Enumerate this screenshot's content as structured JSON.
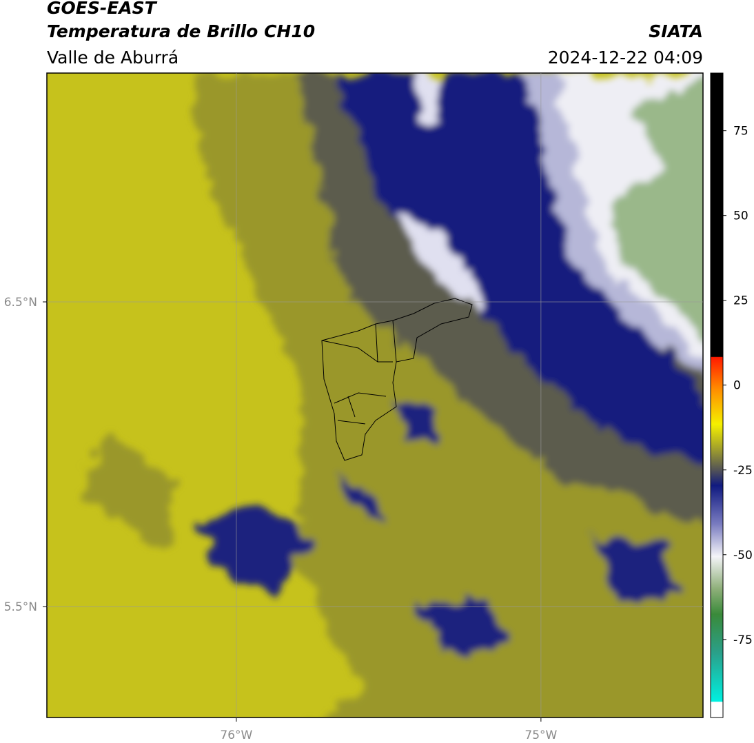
{
  "chart_data": {
    "type": "map",
    "title": "GOES-EAST",
    "subtitle": "Temperatura de Brillo CH10",
    "region": "Valle de Aburrá",
    "source": "SIATA",
    "timestamp": "2024-12-22 04:09",
    "xlim": [
      -76.622,
      -74.468
    ],
    "ylim": [
      5.136,
      7.251
    ],
    "xticks": [
      {
        "value": -76,
        "label": "76°W"
      },
      {
        "value": -75,
        "label": "75°W"
      }
    ],
    "yticks": [
      {
        "value": 6.5,
        "label": "6.5°N"
      },
      {
        "value": 5.5,
        "label": "5.5°N"
      }
    ],
    "grid": true,
    "colorbar": {
      "lim": [
        -98,
        92
      ],
      "ticks": [
        75,
        50,
        25,
        0,
        -25,
        -50,
        -75
      ]
    }
  }
}
